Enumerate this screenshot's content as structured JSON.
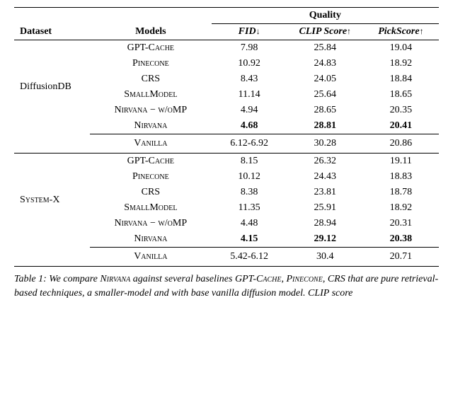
{
  "table": {
    "headers": {
      "dataset": "Dataset",
      "models": "Models",
      "quality": "Quality",
      "fid": "FID",
      "fid_arrow": "↓",
      "clip": "CLIP Score",
      "clip_arrow": "↑",
      "pick": "PickScore",
      "pick_arrow": "↑"
    },
    "datasets": [
      {
        "name": "DiffusionDB",
        "name_class": "",
        "rows": [
          {
            "model": "GPT-Cache",
            "smallcaps": true,
            "fid": "7.98",
            "clip": "25.84",
            "pick": "19.04",
            "bold": false
          },
          {
            "model": "Pinecone",
            "smallcaps": true,
            "fid": "10.92",
            "clip": "24.83",
            "pick": "18.92",
            "bold": false
          },
          {
            "model": "CRS",
            "smallcaps": false,
            "fid": "8.43",
            "clip": "24.05",
            "pick": "18.84",
            "bold": false
          },
          {
            "model": "SmallModel",
            "smallcaps": true,
            "fid": "11.14",
            "clip": "25.64",
            "pick": "18.65",
            "bold": false
          },
          {
            "model": "Nirvana − w/oMP",
            "smallcaps": true,
            "fid": "4.94",
            "clip": "28.65",
            "pick": "20.35",
            "bold": false
          },
          {
            "model": "Nirvana",
            "smallcaps": true,
            "fid": "4.68",
            "clip": "28.81",
            "pick": "20.41",
            "bold": true
          }
        ],
        "vanilla": {
          "model": "Vanilla",
          "fid": "6.12-6.92",
          "clip": "30.28",
          "pick": "20.86"
        }
      },
      {
        "name": "System-X",
        "name_class": "smallcaps",
        "rows": [
          {
            "model": "GPT-Cache",
            "smallcaps": true,
            "fid": "8.15",
            "clip": "26.32",
            "pick": "19.11",
            "bold": false
          },
          {
            "model": "Pinecone",
            "smallcaps": true,
            "fid": "10.12",
            "clip": "24.43",
            "pick": "18.83",
            "bold": false
          },
          {
            "model": "CRS",
            "smallcaps": false,
            "fid": "8.38",
            "clip": "23.81",
            "pick": "18.78",
            "bold": false
          },
          {
            "model": "SmallModel",
            "smallcaps": true,
            "fid": "11.35",
            "clip": "25.91",
            "pick": "18.92",
            "bold": false
          },
          {
            "model": "Nirvana − w/oMP",
            "smallcaps": true,
            "fid": "4.48",
            "clip": "28.94",
            "pick": "20.31",
            "bold": false
          },
          {
            "model": "Nirvana",
            "smallcaps": true,
            "fid": "4.15",
            "clip": "29.12",
            "pick": "20.38",
            "bold": true
          }
        ],
        "vanilla": {
          "model": "Vanilla",
          "fid": "5.42-6.12",
          "clip": "30.4",
          "pick": "20.71"
        }
      }
    ]
  },
  "caption": {
    "label": "Table 1:",
    "text_parts": [
      {
        "text": " We compare ",
        "class": ""
      },
      {
        "text": "Nirvana",
        "class": "smallcaps"
      },
      {
        "text": " against several baselines ",
        "class": ""
      },
      {
        "text": "GPT-Cache",
        "class": "smallcaps"
      },
      {
        "text": ", ",
        "class": ""
      },
      {
        "text": "Pinecone",
        "class": "smallcaps"
      },
      {
        "text": ", ",
        "class": ""
      },
      {
        "text": "CRS",
        "class": ""
      },
      {
        "text": " that are pure retrieval-based techniques, a smaller-model and with base vanilla diffusion model. CLIP score",
        "class": ""
      }
    ]
  }
}
